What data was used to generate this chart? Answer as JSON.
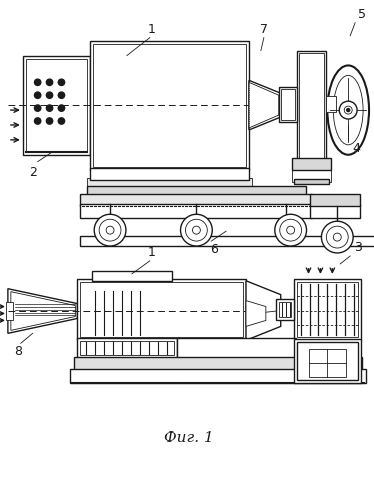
{
  "title": "Фиг. 1",
  "labels": {
    "1_top": "1",
    "2": "2",
    "3": "3",
    "4": "4",
    "5": "5",
    "6": "6",
    "7": "7",
    "8": "8",
    "1_bot": "1"
  },
  "bg_color": "#ffffff",
  "line_color": "#1a1a1a",
  "figsize": [
    3.74,
    4.99
  ],
  "dpi": 100
}
